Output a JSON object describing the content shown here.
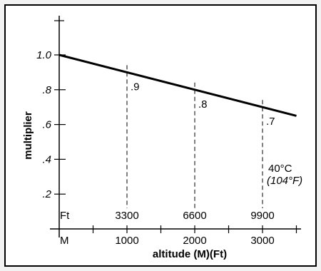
{
  "chart_data": {
    "type": "line",
    "ylabel": "multiplier",
    "xlabel": "altitude (M)(Ft)",
    "x_unit_primary": "M",
    "x_unit_secondary": "Ft",
    "x_ticks_m": [
      "1000",
      "2000",
      "3000"
    ],
    "x_ticks_ft": [
      "3300",
      "6600",
      "9900"
    ],
    "y_ticks": [
      {
        "value": 1.0,
        "label": "1.0"
      },
      {
        "value": 0.8,
        "label": ".8"
      },
      {
        "value": 0.6,
        "label": ".6"
      },
      {
        "value": 0.4,
        "label": ".4"
      },
      {
        "value": 0.2,
        "label": ".2"
      }
    ],
    "ylim": [
      0,
      1.2
    ],
    "xlim": [
      0,
      3500
    ],
    "series": [
      {
        "x": [
          0,
          3500
        ],
        "y": [
          1.0,
          0.65
        ]
      }
    ],
    "reference_points": [
      {
        "x": 1000,
        "y": 0.9,
        "label": ".9"
      },
      {
        "x": 2000,
        "y": 0.8,
        "label": ".8"
      },
      {
        "x": 3000,
        "y": 0.7,
        "label": ".7"
      }
    ],
    "annotation": {
      "line1": "40°C",
      "line2": "(104°F)"
    }
  }
}
